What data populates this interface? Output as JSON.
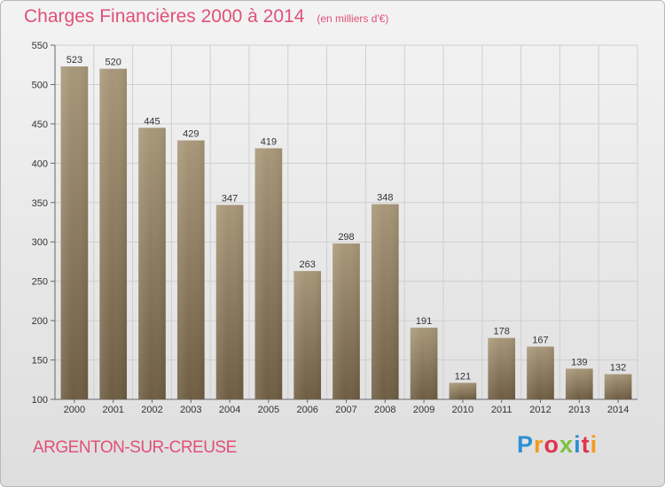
{
  "header": {
    "title": "Charges Financières 2000 à 2014",
    "subtitle": "(en milliers d'€)"
  },
  "footer": {
    "city": "ARGENTON-SUR-CREUSE",
    "brand": "Proxiti",
    "brand_colors": [
      "#2d8fd5",
      "#f39a1e",
      "#e2334b",
      "#7cc143",
      "#2d8fd5",
      "#e2334b",
      "#f39a1e"
    ]
  },
  "colors": {
    "accent": "#e0507a",
    "bar_light": "#a89779",
    "bar_dark": "#6e5d42",
    "grid": "#cfcfcf"
  },
  "chart_data": {
    "type": "bar",
    "title": "Charges Financières 2000 à 2014",
    "subtitle": "(en milliers d'€)",
    "xlabel": "",
    "ylabel": "",
    "categories": [
      "2000",
      "2001",
      "2002",
      "2003",
      "2004",
      "2005",
      "2006",
      "2007",
      "2008",
      "2009",
      "2010",
      "2011",
      "2012",
      "2013",
      "2014"
    ],
    "values": [
      523,
      520,
      445,
      429,
      347,
      419,
      263,
      298,
      348,
      191,
      121,
      178,
      167,
      139,
      132
    ],
    "ylim": [
      100,
      550
    ],
    "yticks": [
      100,
      150,
      200,
      250,
      300,
      350,
      400,
      450,
      500,
      550
    ],
    "grid": true,
    "data_labels": true
  }
}
